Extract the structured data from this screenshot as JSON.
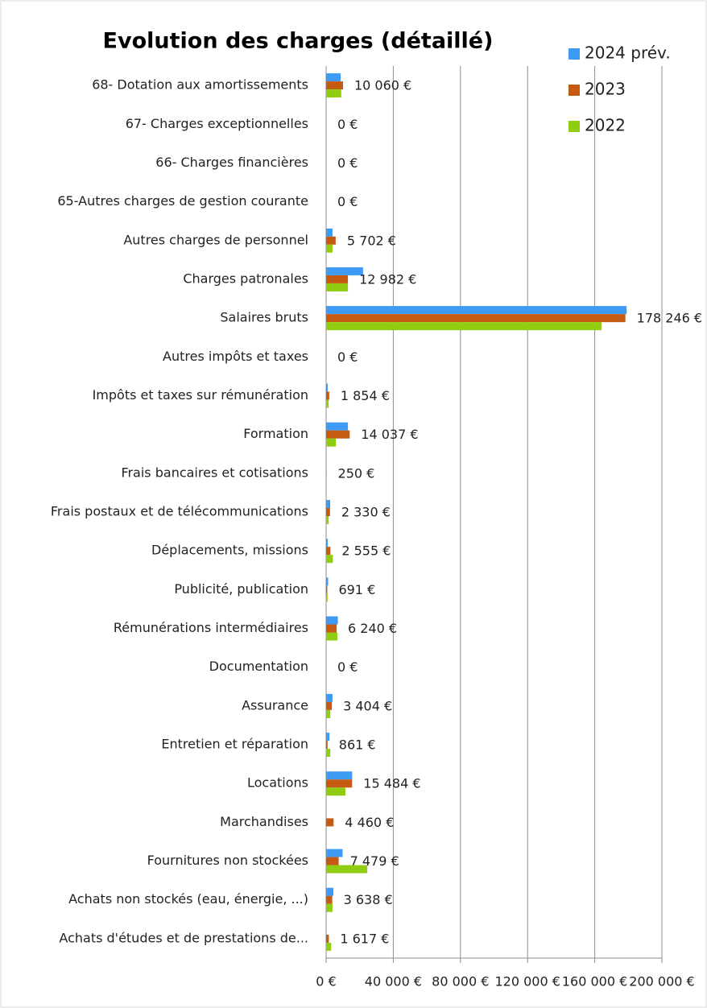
{
  "chart_data": {
    "type": "hbar",
    "title": "Evolution des charges (détaillé)",
    "categories": [
      "68- Dotation aux amortissements",
      "67- Charges exceptionnelles",
      "66- Charges financières",
      "65-Autres charges de gestion courante",
      "Autres charges de personnel",
      "Charges patronales",
      "Salaires bruts",
      "Autres impôts et taxes",
      "Impôts et taxes sur rémunération",
      "Formation",
      "Frais bancaires et cotisations",
      "Frais postaux et de télécommunications",
      "Déplacements, missions",
      "Publicité, publication",
      "Rémunérations intermédiaires",
      "Documentation",
      "Assurance",
      "Entretien et réparation",
      "Locations",
      "Marchandises",
      "Fournitures non stockées",
      "Achats non stockés (eau, énergie, ...)",
      "Achats d'études et de prestations de..."
    ],
    "series": [
      {
        "name": "2024 prév.",
        "color": "#3d9bf3",
        "values": [
          8600,
          0,
          0,
          0,
          3800,
          22000,
          179000,
          0,
          1000,
          13000,
          0,
          2400,
          1000,
          1200,
          7000,
          0,
          3800,
          2000,
          15500,
          0,
          9800,
          4300,
          0
        ]
      },
      {
        "name": "2023",
        "color": "#c55a11",
        "values": [
          10060,
          0,
          0,
          0,
          5702,
          12982,
          178246,
          0,
          1854,
          14037,
          250,
          2330,
          2555,
          691,
          6240,
          0,
          3404,
          861,
          15484,
          4460,
          7479,
          3638,
          1617
        ],
        "value_labels": [
          "10 060 €",
          "0 €",
          "0 €",
          "0 €",
          "5 702 €",
          "12 982 €",
          "178 246 €",
          "0 €",
          "1 854 €",
          "14 037 €",
          "250 €",
          "2 330 €",
          "2 555 €",
          "691 €",
          "6 240 €",
          "0 €",
          "3 404 €",
          "861 €",
          "15 484 €",
          "4 460 €",
          "7 479 €",
          "3 638 €",
          "1 617 €"
        ]
      },
      {
        "name": "2022",
        "color": "#8fcc12",
        "values": [
          9000,
          0,
          0,
          0,
          3800,
          13000,
          164000,
          0,
          1500,
          5800,
          300,
          1500,
          4000,
          900,
          6800,
          0,
          2500,
          2500,
          11500,
          0,
          24500,
          3800,
          3000
        ]
      }
    ],
    "xlim": [
      0,
      200000
    ],
    "xticks": [
      {
        "value": 0,
        "label": "0 €"
      },
      {
        "value": 40000,
        "label": "40 000 €"
      },
      {
        "value": 80000,
        "label": "80 000 €"
      },
      {
        "value": 120000,
        "label": "120 000 €"
      },
      {
        "value": 160000,
        "label": "160 000 €"
      },
      {
        "value": 200000,
        "label": "200 000 €"
      }
    ],
    "grid": true,
    "legend": "top-right"
  }
}
